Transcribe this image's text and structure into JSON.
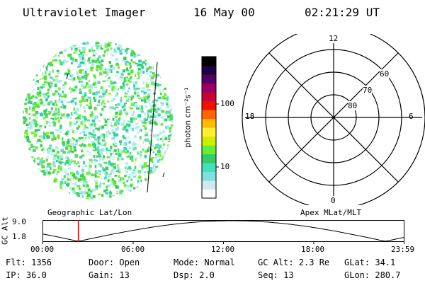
{
  "header": {
    "instrument": "Ultraviolet Imager",
    "date": "16 May 00",
    "time": "02:21:29 UT"
  },
  "colorbar": {
    "label": "photon cm⁻²s⁻¹",
    "ticks": [
      "100",
      "10"
    ],
    "scale": "log",
    "colors": [
      "#ffffff",
      "#cfe9ee",
      "#7fe0dc",
      "#40e0c0",
      "#33cc66",
      "#66ee33",
      "#ccee00",
      "#ffee33",
      "#ffbb00",
      "#ff6600",
      "#ee1100",
      "#cc0033",
      "#990066",
      "#550066",
      "#220044",
      "#000000"
    ]
  },
  "polar_plot": {
    "mlt_labels": [
      "12",
      "18",
      "6",
      "0"
    ],
    "lat_labels": [
      "60",
      "70",
      "80"
    ]
  },
  "altitude_panel": {
    "ylabel": "GC Alt",
    "yticks": [
      "9.0",
      "1.8"
    ],
    "left_label": "Geographic Lat/Lon",
    "right_label": "Apex MLat/MLT",
    "time_ticks": [
      "00:00",
      "06:00",
      "12:00",
      "18:00",
      "23:59"
    ],
    "current_time_fraction": 0.0982,
    "marker_color": "#dd0000"
  },
  "info": {
    "row1": {
      "flt": "Flt: 1356",
      "door": "Door: Open",
      "mode": "Mode: Normal",
      "gcalt": "GC Alt: 2.3 Re",
      "glat": "GLat:  34.1"
    },
    "row2": {
      "ip": "IP: 36.0",
      "gain": "Gain: 13",
      "dsp": "Dsp:     2.0",
      "seq": "Seq: 13",
      "glon": "GLon: 280.7"
    }
  }
}
